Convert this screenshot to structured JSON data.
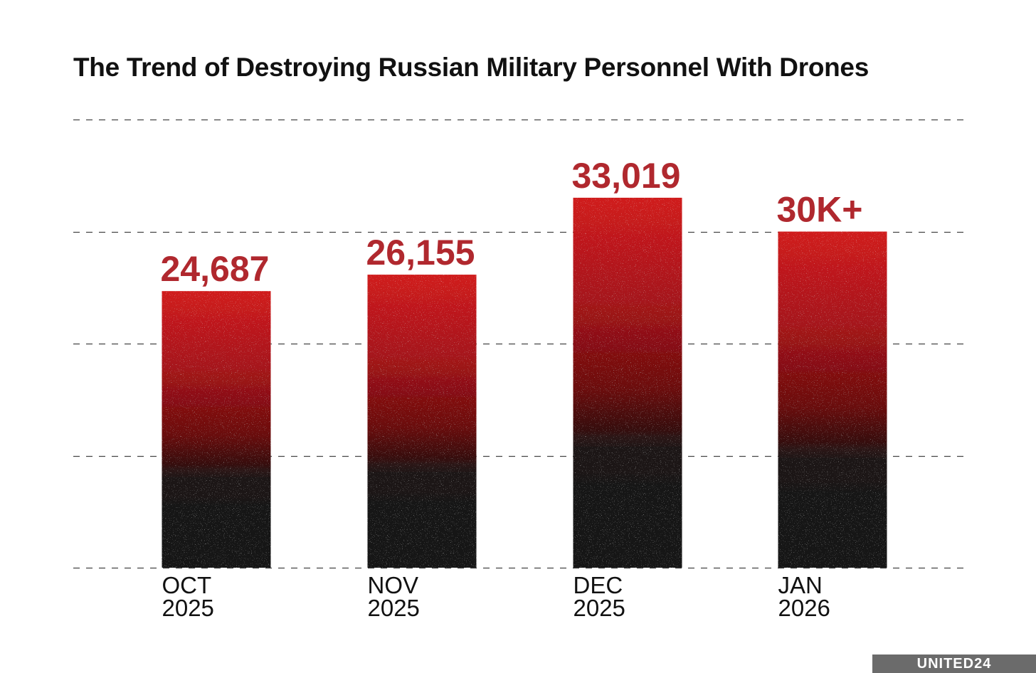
{
  "chart_data": {
    "type": "bar",
    "title": "The Trend of Destroying Russian Military Personnel With Drones",
    "categories": [
      {
        "month": "OCT",
        "year": "2025"
      },
      {
        "month": "NOV",
        "year": "2025"
      },
      {
        "month": "DEC",
        "year": "2025"
      },
      {
        "month": "JAN",
        "year": "2026"
      }
    ],
    "values": [
      24687,
      26155,
      33019,
      30000
    ],
    "value_labels": [
      "24,687",
      "26,155",
      "33,019",
      "30K+"
    ],
    "ylim": [
      0,
      40000
    ],
    "gridlines": [
      0,
      10000,
      20000,
      30000,
      40000
    ],
    "grid": true,
    "grid_style": "dashed",
    "xlabel": "",
    "ylabel": "",
    "colors": {
      "bar_top": "#d01c1c",
      "bar_mid": "#6a0b0b",
      "bar_bottom": "#121212",
      "label": "#b0282e",
      "grid": "#444444",
      "text": "#111111"
    }
  },
  "watermark": {
    "text": "UNITED24"
  }
}
